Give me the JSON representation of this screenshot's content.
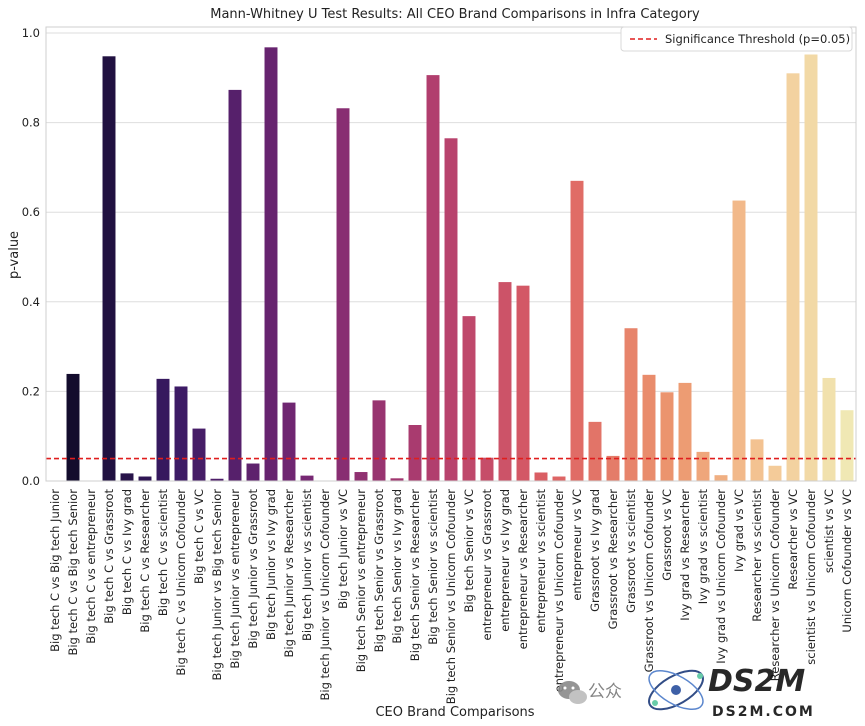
{
  "chart_data": {
    "type": "bar",
    "title": "Mann-Whitney U Test Results: All CEO Brand Comparisons in Infra Category",
    "xlabel": "CEO Brand Comparisons",
    "ylabel": "p-value",
    "ylim": [
      0,
      1.0
    ],
    "yticks": [
      "0.0",
      "0.2",
      "0.4",
      "0.6",
      "0.8",
      "1.0"
    ],
    "grid": true,
    "legend": {
      "position": "top-right",
      "label": "Significance Threshold (p=0.05)"
    },
    "threshold": 0.05,
    "threshold_color": "#e01e1e",
    "palette": "magma-to-cream",
    "categories": [
      "Big tech C vs Big tech Junior",
      "Big tech C vs Big tech Senior",
      "Big tech C vs entrepreneur",
      "Big tech C vs Grassroot",
      "Big tech C vs Ivy grad",
      "Big tech C vs Researcher",
      "Big tech C vs scientist",
      "Big tech C vs Unicorn Cofounder",
      "Big tech C vs VC",
      "Big tech Junior vs Big tech Senior",
      "Big tech Junior vs entrepreneur",
      "Big tech Junior vs Grassroot",
      "Big tech Junior vs Ivy grad",
      "Big tech Junior vs Researcher",
      "Big tech Junior vs scientist",
      "Big tech Junior vs Unicorn Cofounder",
      "Big tech Junior vs VC",
      "Big tech Senior vs entrepreneur",
      "Big tech Senior vs Grassroot",
      "Big tech Senior vs Ivy grad",
      "Big tech Senior vs Researcher",
      "Big tech Senior vs scientist",
      "Big tech Senior vs Unicorn Cofounder",
      "Big tech Senior vs VC",
      "entrepreneur vs Grassroot",
      "entrepreneur vs Ivy grad",
      "entrepreneur vs Researcher",
      "entrepreneur vs scientist",
      "entrepreneur vs Unicorn Cofounder",
      "entrepreneur vs VC",
      "Grassroot vs Ivy grad",
      "Grassroot vs Researcher",
      "Grassroot vs scientist",
      "Grassroot vs Unicorn Cofounder",
      "Grassroot vs VC",
      "Ivy grad vs Researcher",
      "Ivy grad vs scientist",
      "Ivy grad vs Unicorn Cofounder",
      "Ivy grad vs VC",
      "Researcher vs scientist",
      "Researcher vs Unicorn Cofounder",
      "Researcher vs VC",
      "scientist vs Unicorn Cofounder",
      "scientist vs VC",
      "Unicorn Cofounder vs VC"
    ],
    "values": [
      0.0,
      0.239,
      0.0,
      0.948,
      0.017,
      0.01,
      0.228,
      0.211,
      0.117,
      0.005,
      0.873,
      0.039,
      0.968,
      0.175,
      0.012,
      0.0,
      0.832,
      0.02,
      0.18,
      0.006,
      0.125,
      0.906,
      0.765,
      0.368,
      0.052,
      0.444,
      0.436,
      0.019,
      0.01,
      0.67,
      0.132,
      0.056,
      0.341,
      0.237,
      0.198,
      0.219,
      0.065,
      0.013,
      0.626,
      0.093,
      0.034,
      0.91,
      0.952,
      0.23,
      0.158
    ]
  },
  "watermark": {
    "channel_text": "公众",
    "logo_text": "DS2M",
    "domain_text": "DS2M.COM"
  }
}
